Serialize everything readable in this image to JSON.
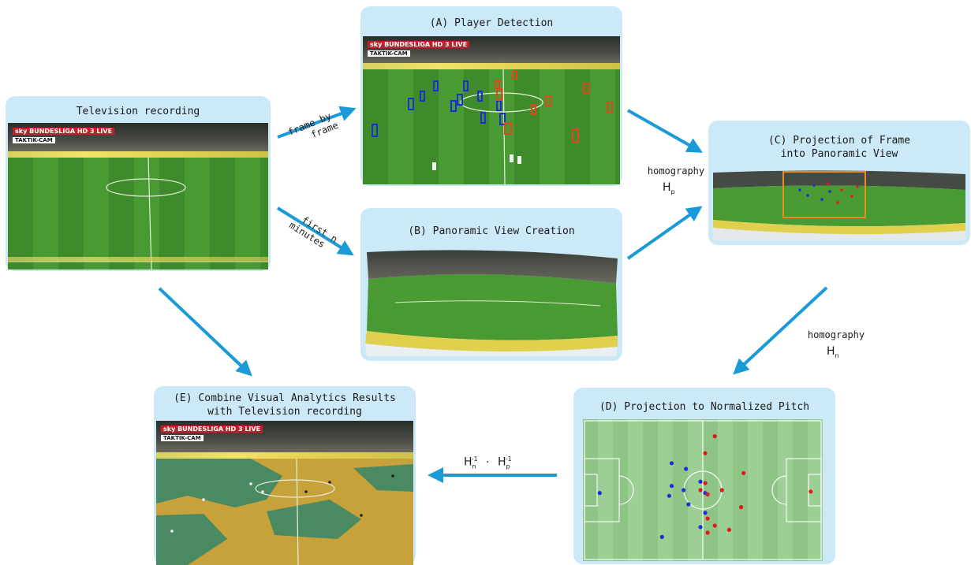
{
  "panels": {
    "tv": {
      "title": "Television recording"
    },
    "a": {
      "title": "(A) Player Detection"
    },
    "b": {
      "title": "(B) Panoramic View Creation"
    },
    "c": {
      "title_line1": "(C) Projection of Frame",
      "title_line2": "into Panoramic View"
    },
    "d": {
      "title": "(D) Projection to Normalized Pitch"
    },
    "e": {
      "title_line1": "(E) Combine Visual Analytics Results",
      "title_line2": "with Television recording"
    }
  },
  "broadcast": {
    "brand": "sky BUNDESLIGA HD 3 LIVE",
    "tag": "TAKTIK-CAM"
  },
  "arrows": {
    "frame_by_frame": {
      "line1": "frame by",
      "line2": "frame"
    },
    "first_n_minutes": {
      "line1": "first n",
      "line2": "minutes"
    },
    "homography_p": {
      "label": "homography",
      "symbol": "H",
      "sub": "p"
    },
    "homography_n": {
      "label": "homography",
      "symbol": "H",
      "sub": "n"
    },
    "inverse": {
      "h1": "H",
      "sub1": "n",
      "sup1": "-1",
      "dot": "·",
      "h2": "H",
      "sub2": "p",
      "sup2": "-1"
    }
  },
  "colors": {
    "panel": "#cce9f7",
    "arrow": "#1a9ad6",
    "team_blue": "#1a2fd6",
    "team_red": "#e01a1a",
    "highlight": "#f08a1c"
  },
  "pitch_players": {
    "blue": [
      [
        0.07,
        0.52
      ],
      [
        0.37,
        0.31
      ],
      [
        0.43,
        0.35
      ],
      [
        0.37,
        0.47
      ],
      [
        0.36,
        0.54
      ],
      [
        0.42,
        0.5
      ],
      [
        0.44,
        0.6
      ],
      [
        0.49,
        0.44
      ],
      [
        0.51,
        0.52
      ],
      [
        0.51,
        0.66
      ],
      [
        0.49,
        0.76
      ],
      [
        0.33,
        0.83
      ]
    ],
    "red": [
      [
        0.55,
        0.12
      ],
      [
        0.51,
        0.24
      ],
      [
        0.67,
        0.38
      ],
      [
        0.51,
        0.45
      ],
      [
        0.49,
        0.5
      ],
      [
        0.52,
        0.53
      ],
      [
        0.58,
        0.5
      ],
      [
        0.66,
        0.62
      ],
      [
        0.52,
        0.7
      ],
      [
        0.55,
        0.75
      ],
      [
        0.52,
        0.8
      ],
      [
        0.61,
        0.78
      ],
      [
        0.95,
        0.51
      ]
    ]
  }
}
